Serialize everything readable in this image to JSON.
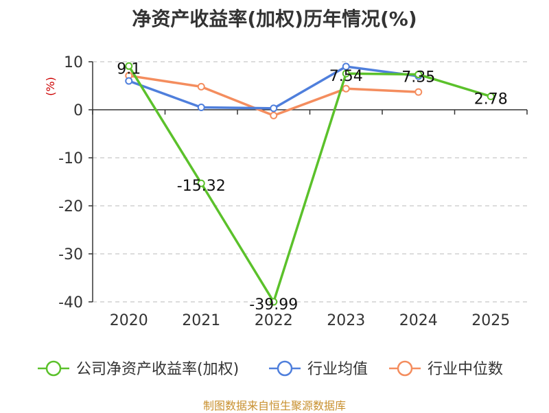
{
  "chart_data": {
    "type": "line",
    "title": "净资产收益率(加权)历年情况(%)",
    "ylabel": "(%)",
    "categories": [
      "2020",
      "2021",
      "2022",
      "2023",
      "2024",
      "2025"
    ],
    "ylim": [
      -40,
      10
    ],
    "yticks": [
      10,
      0,
      -10,
      -20,
      -30,
      -40
    ],
    "grid": "horizontal-dashed",
    "legend_placement": "bottom",
    "series": [
      {
        "name": "公司净资产收益率(加权)",
        "color": "#5bc12b",
        "values": [
          9.1,
          -15.32,
          -39.99,
          7.54,
          7.35,
          2.78
        ],
        "labels": [
          "9.1",
          "-15.32",
          "-39.99",
          "7.54",
          "7.35",
          "2.78"
        ]
      },
      {
        "name": "行业均值",
        "color": "#4f7fdc",
        "values": [
          6.0,
          0.5,
          0.3,
          9.0,
          7.0,
          null
        ]
      },
      {
        "name": "行业中位数",
        "color": "#f48d5e",
        "values": [
          7.1,
          4.8,
          -1.2,
          4.4,
          3.7,
          null
        ]
      }
    ]
  },
  "footer": {
    "source": "制图数据来自恒生聚源数据库"
  }
}
